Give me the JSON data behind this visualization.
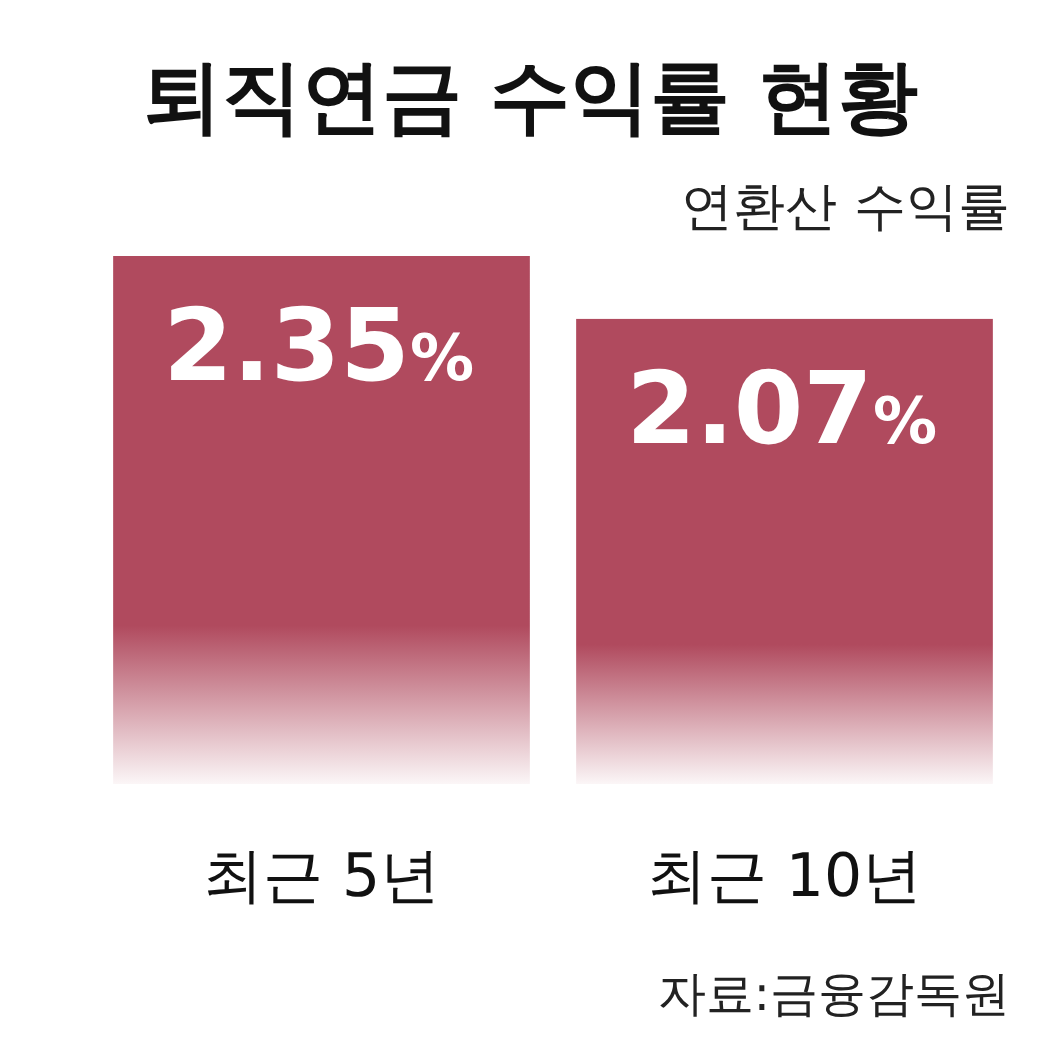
{
  "chart_data": {
    "type": "bar",
    "title": "퇴직연금 수익률 현황",
    "subtitle": "연환산 수익률",
    "categories": [
      "최근 5년",
      "최근 10년"
    ],
    "values": [
      2.35,
      2.07
    ],
    "color": "#b04a5e",
    "value_labels": [
      "2.35%",
      "2.07%"
    ],
    "annotations": [
      "자료:금융감독원"
    ]
  }
}
